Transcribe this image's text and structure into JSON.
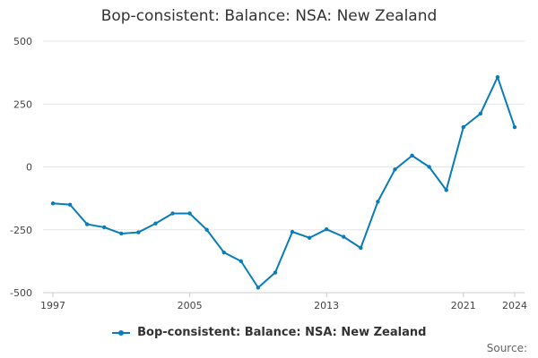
{
  "chart_data": {
    "type": "line",
    "title": "Bop-consistent: Balance: NSA: New Zealand",
    "xlabel": "",
    "ylabel": "",
    "x": [
      1997,
      1998,
      1999,
      2000,
      2001,
      2002,
      2003,
      2004,
      2005,
      2006,
      2007,
      2008,
      2009,
      2010,
      2011,
      2012,
      2013,
      2014,
      2015,
      2016,
      2017,
      2018,
      2019,
      2020,
      2021,
      2022,
      2023,
      2024
    ],
    "series": [
      {
        "name": "Bop-consistent: Balance: NSA: New Zealand",
        "values": [
          -145,
          -150,
          -228,
          -240,
          -265,
          -260,
          -225,
          -185,
          -185,
          -250,
          -340,
          -375,
          -480,
          -420,
          -258,
          -282,
          -248,
          -278,
          -322,
          -138,
          -10,
          45,
          0,
          -92,
          158,
          212,
          357,
          158
        ]
      }
    ],
    "xlim": [
      1997,
      2024
    ],
    "ylim": [
      -500,
      500
    ],
    "x_ticks": [
      "1997",
      "2005",
      "2013",
      "2021",
      "2024"
    ],
    "y_ticks": [
      "500",
      "250",
      "0",
      "-250",
      "-500"
    ],
    "grid": "horizontal",
    "legend": "bottom-center",
    "line_color": "#0a7cba"
  },
  "footer": {
    "source_label": "Source:"
  }
}
